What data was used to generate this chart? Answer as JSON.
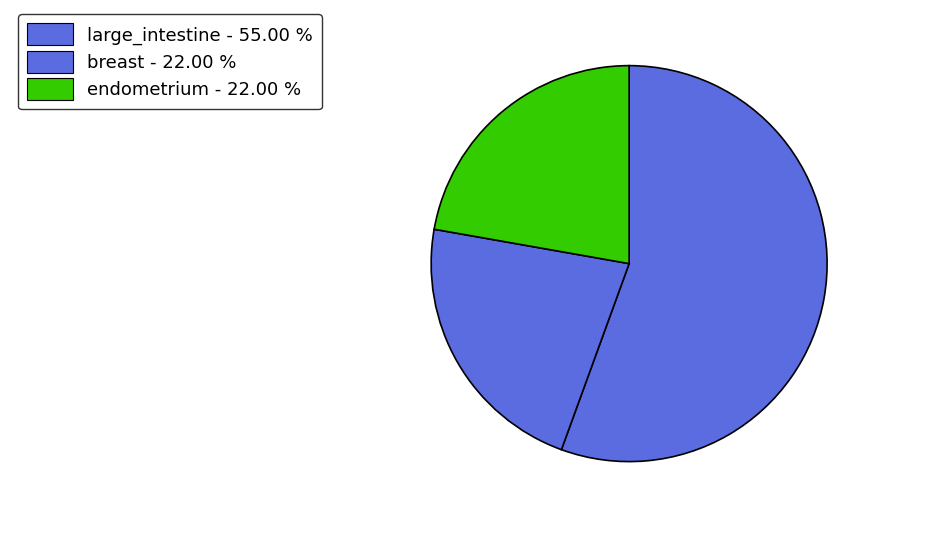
{
  "labels": [
    "large_intestine",
    "breast",
    "endometrium"
  ],
  "values": [
    55.0,
    22.0,
    22.0
  ],
  "colors": [
    "#5b6be0",
    "#5b6be0",
    "#33cc00"
  ],
  "legend_labels": [
    "large_intestine - 55.00 %",
    "breast - 22.00 %",
    "endometrium - 22.00 %"
  ],
  "legend_colors": [
    "#5b6be0",
    "#5b6be0",
    "#33cc00"
  ],
  "startangle": 90,
  "counterclock": false,
  "figsize": [
    9.39,
    5.38
  ],
  "dpi": 100
}
